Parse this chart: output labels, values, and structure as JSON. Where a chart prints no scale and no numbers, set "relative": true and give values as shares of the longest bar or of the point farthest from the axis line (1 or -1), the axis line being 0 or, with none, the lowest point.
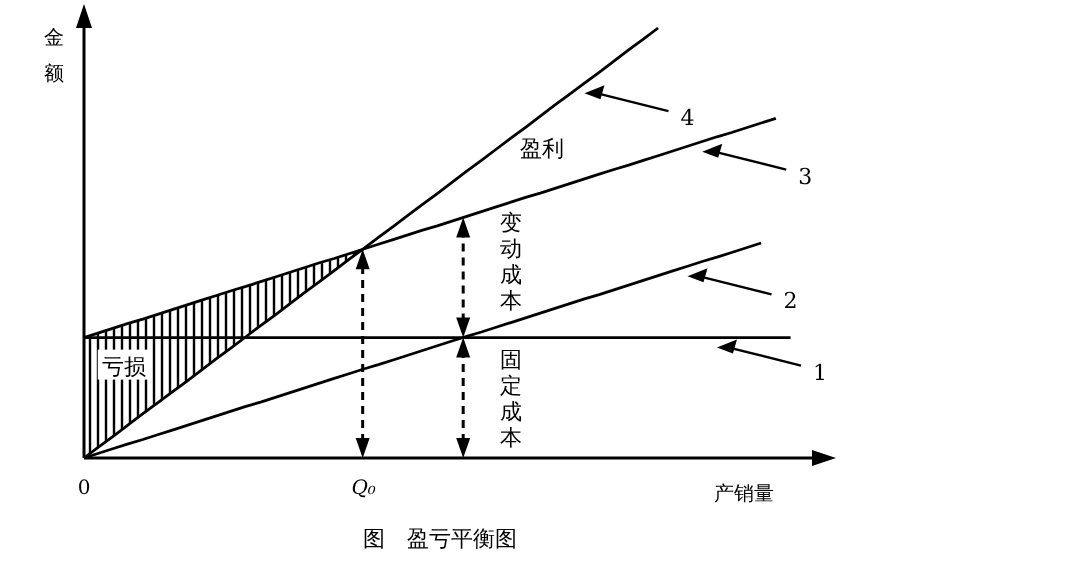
{
  "chart_data": {
    "type": "line",
    "title": "图　盈亏平衡图",
    "xlabel": "产销量",
    "ylabel": "金额",
    "relative": true,
    "legend": false,
    "categories": [
      "0",
      null,
      null,
      null,
      null,
      null,
      null,
      null,
      null,
      null,
      null,
      null,
      null,
      null,
      null,
      null,
      null,
      null,
      null,
      "Q₀",
      null,
      null,
      null,
      null,
      null,
      null,
      null,
      null,
      null,
      null,
      null,
      null,
      null,
      null,
      null,
      null,
      null,
      null,
      null,
      null,
      null,
      null,
      null,
      null,
      null,
      null,
      null,
      null,
      null
    ],
    "series": [
      {
        "name": "1",
        "color": "#000000",
        "values": [
          0.28,
          0.28,
          0.28,
          0.28,
          0.28,
          0.28,
          0.28,
          0.28,
          0.28,
          0.28,
          0.28,
          0.28,
          0.28,
          0.28,
          0.28,
          0.28,
          0.28,
          0.28,
          0.28,
          0.28,
          0.28,
          0.28,
          0.28,
          0.28,
          0.28,
          0.28,
          0.28,
          0.28,
          0.28,
          0.28,
          0.28,
          0.28,
          0.28,
          0.28,
          0.28,
          0.28,
          0.28,
          0.28,
          0.28,
          0.28,
          0.28,
          0.28,
          0.28,
          0.28,
          0.28,
          0.28,
          0.28,
          0.28,
          0.28
        ]
      },
      {
        "name": "2",
        "color": "#000000",
        "values": [
          0,
          0.011,
          0.022,
          0.033,
          0.043,
          0.054,
          0.065,
          0.076,
          0.087,
          0.098,
          0.109,
          0.12,
          0.13,
          0.141,
          0.152,
          0.163,
          0.174,
          0.185,
          0.196,
          0.207,
          0.217,
          0.228,
          0.239,
          0.25,
          0.261,
          0.272,
          0.283,
          0.293,
          0.304,
          0.315,
          0.326,
          0.337,
          0.348,
          0.359,
          0.37,
          0.38,
          0.391,
          0.402,
          0.413,
          0.424,
          0.435,
          0.446,
          0.457,
          0.467,
          0.478,
          0.489,
          0.5,
          null,
          null
        ]
      },
      {
        "name": "3",
        "color": "#000000",
        "values": [
          0.28,
          0.291,
          0.302,
          0.313,
          0.323,
          0.334,
          0.345,
          0.356,
          0.367,
          0.378,
          0.389,
          0.399,
          0.41,
          0.421,
          0.432,
          0.443,
          0.454,
          0.464,
          0.475,
          0.486,
          0.497,
          0.508,
          0.519,
          0.53,
          0.54,
          0.551,
          0.562,
          0.573,
          0.584,
          0.595,
          0.606,
          0.616,
          0.627,
          0.638,
          0.649,
          0.66,
          0.671,
          0.681,
          0.692,
          0.703,
          0.714,
          0.725,
          0.736,
          0.747,
          0.757,
          0.768,
          0.779,
          0.79,
          null
        ]
      },
      {
        "name": "4",
        "color": "#000000",
        "values": [
          0,
          0.026,
          0.051,
          0.077,
          0.103,
          0.128,
          0.154,
          0.179,
          0.205,
          0.231,
          0.256,
          0.282,
          0.308,
          0.333,
          0.359,
          0.385,
          0.41,
          0.436,
          0.462,
          0.487,
          0.513,
          0.538,
          0.564,
          0.59,
          0.615,
          0.641,
          0.667,
          0.692,
          0.718,
          0.744,
          0.769,
          0.795,
          0.821,
          0.846,
          0.872,
          0.897,
          0.923,
          0.949,
          0.974,
          1,
          null,
          null,
          null,
          null,
          null,
          null,
          null,
          null,
          null
        ]
      }
    ],
    "annotations": [
      "盈利",
      "亏损",
      "变动成本",
      "固定成本"
    ]
  }
}
